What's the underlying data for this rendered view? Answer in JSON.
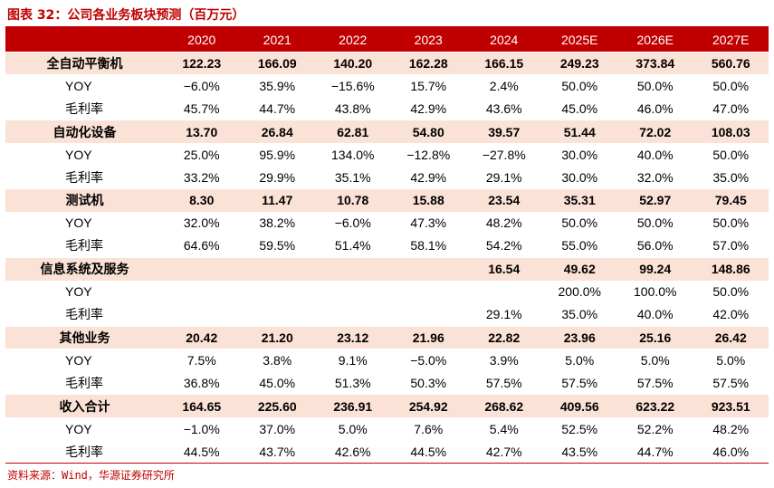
{
  "title": "图表 32：公司各业务板块预测（百万元）",
  "source": "资料来源：Wind，华源证券研究所",
  "table": {
    "columns": [
      "",
      "2020",
      "2021",
      "2022",
      "2023",
      "2024",
      "2025E",
      "2026E",
      "2027E"
    ],
    "rows": [
      {
        "kind": "cat",
        "label": "全自动平衡机",
        "values": [
          "122.23",
          "166.09",
          "140.20",
          "162.28",
          "166.15",
          "249.23",
          "373.84",
          "560.76"
        ]
      },
      {
        "kind": "sub",
        "label": "YOY",
        "values": [
          "−6.0%",
          "35.9%",
          "−15.6%",
          "15.7%",
          "2.4%",
          "50.0%",
          "50.0%",
          "50.0%"
        ]
      },
      {
        "kind": "sub",
        "label": "毛利率",
        "values": [
          "45.7%",
          "44.7%",
          "43.8%",
          "42.9%",
          "43.6%",
          "45.0%",
          "46.0%",
          "47.0%"
        ]
      },
      {
        "kind": "cat",
        "label": "自动化设备",
        "values": [
          "13.70",
          "26.84",
          "62.81",
          "54.80",
          "39.57",
          "51.44",
          "72.02",
          "108.03"
        ]
      },
      {
        "kind": "sub",
        "label": "YOY",
        "values": [
          "25.0%",
          "95.9%",
          "134.0%",
          "−12.8%",
          "−27.8%",
          "30.0%",
          "40.0%",
          "50.0%"
        ]
      },
      {
        "kind": "sub",
        "label": "毛利率",
        "values": [
          "33.2%",
          "29.9%",
          "35.1%",
          "42.9%",
          "29.1%",
          "30.0%",
          "32.0%",
          "35.0%"
        ]
      },
      {
        "kind": "cat",
        "label": "测试机",
        "values": [
          "8.30",
          "11.47",
          "10.78",
          "15.88",
          "23.54",
          "35.31",
          "52.97",
          "79.45"
        ]
      },
      {
        "kind": "sub",
        "label": "YOY",
        "values": [
          "32.0%",
          "38.2%",
          "−6.0%",
          "47.3%",
          "48.2%",
          "50.0%",
          "50.0%",
          "50.0%"
        ]
      },
      {
        "kind": "sub",
        "label": "毛利率",
        "values": [
          "64.6%",
          "59.5%",
          "51.4%",
          "58.1%",
          "54.2%",
          "55.0%",
          "56.0%",
          "57.0%"
        ]
      },
      {
        "kind": "cat",
        "label": "信息系统及服务",
        "values": [
          "",
          "",
          "",
          "",
          "16.54",
          "49.62",
          "99.24",
          "148.86"
        ]
      },
      {
        "kind": "sub",
        "label": "YOY",
        "values": [
          "",
          "",
          "",
          "",
          "",
          "200.0%",
          "100.0%",
          "50.0%"
        ]
      },
      {
        "kind": "sub",
        "label": "毛利率",
        "values": [
          "",
          "",
          "",
          "",
          "29.1%",
          "35.0%",
          "40.0%",
          "42.0%"
        ]
      },
      {
        "kind": "cat",
        "label": "其他业务",
        "values": [
          "20.42",
          "21.20",
          "23.12",
          "21.96",
          "22.82",
          "23.96",
          "25.16",
          "26.42"
        ]
      },
      {
        "kind": "sub",
        "label": "YOY",
        "values": [
          "7.5%",
          "3.8%",
          "9.1%",
          "−5.0%",
          "3.9%",
          "5.0%",
          "5.0%",
          "5.0%"
        ]
      },
      {
        "kind": "sub",
        "label": "毛利率",
        "values": [
          "36.8%",
          "45.0%",
          "51.3%",
          "50.3%",
          "57.5%",
          "57.5%",
          "57.5%",
          "57.5%"
        ]
      },
      {
        "kind": "cat",
        "label": "收入合计",
        "values": [
          "164.65",
          "225.60",
          "236.91",
          "254.92",
          "268.62",
          "409.56",
          "623.22",
          "923.51"
        ]
      },
      {
        "kind": "sub",
        "label": "YOY",
        "values": [
          "−1.0%",
          "37.0%",
          "5.0%",
          "7.6%",
          "5.4%",
          "52.5%",
          "52.2%",
          "48.2%"
        ]
      },
      {
        "kind": "sub",
        "label": "毛利率",
        "values": [
          "44.5%",
          "43.7%",
          "42.6%",
          "44.5%",
          "42.7%",
          "43.5%",
          "44.7%",
          "46.0%"
        ]
      }
    ]
  },
  "colors": {
    "accent": "#c00000",
    "category_row_bg": "#fbe2d6",
    "header_text": "#ffffff"
  }
}
